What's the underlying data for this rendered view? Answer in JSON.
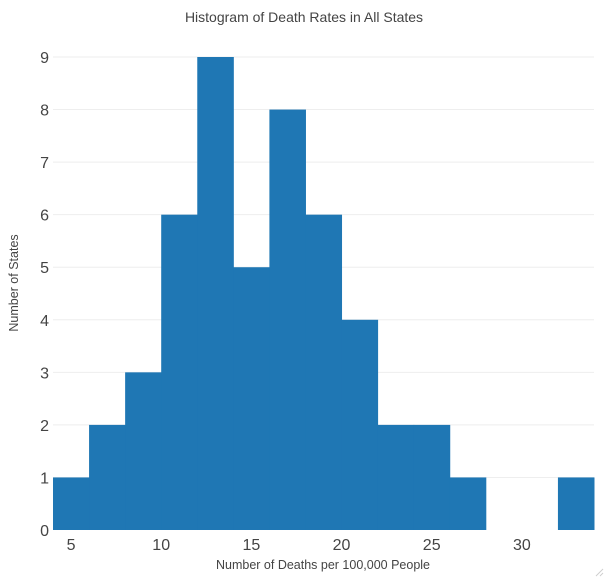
{
  "chart_data": {
    "type": "bar",
    "title": "Histogram of Death Rates in All States",
    "xlabel": "Number of Deaths per 100,000 People",
    "ylabel": "Number of States",
    "bin_edges": [
      4,
      6,
      8,
      10,
      12,
      14,
      16,
      18,
      20,
      22,
      24,
      26,
      28,
      30,
      32,
      34
    ],
    "values": [
      1,
      2,
      3,
      6,
      9,
      5,
      8,
      6,
      4,
      2,
      2,
      1,
      0,
      0,
      1
    ],
    "xlim": [
      4,
      34
    ],
    "ylim": [
      0,
      9
    ],
    "x_ticks": [
      5,
      10,
      15,
      20,
      25,
      30
    ],
    "y_ticks": [
      0,
      1,
      2,
      3,
      4,
      5,
      6,
      7,
      8,
      9
    ],
    "bar_color": "#1f77b4",
    "grid": true
  }
}
